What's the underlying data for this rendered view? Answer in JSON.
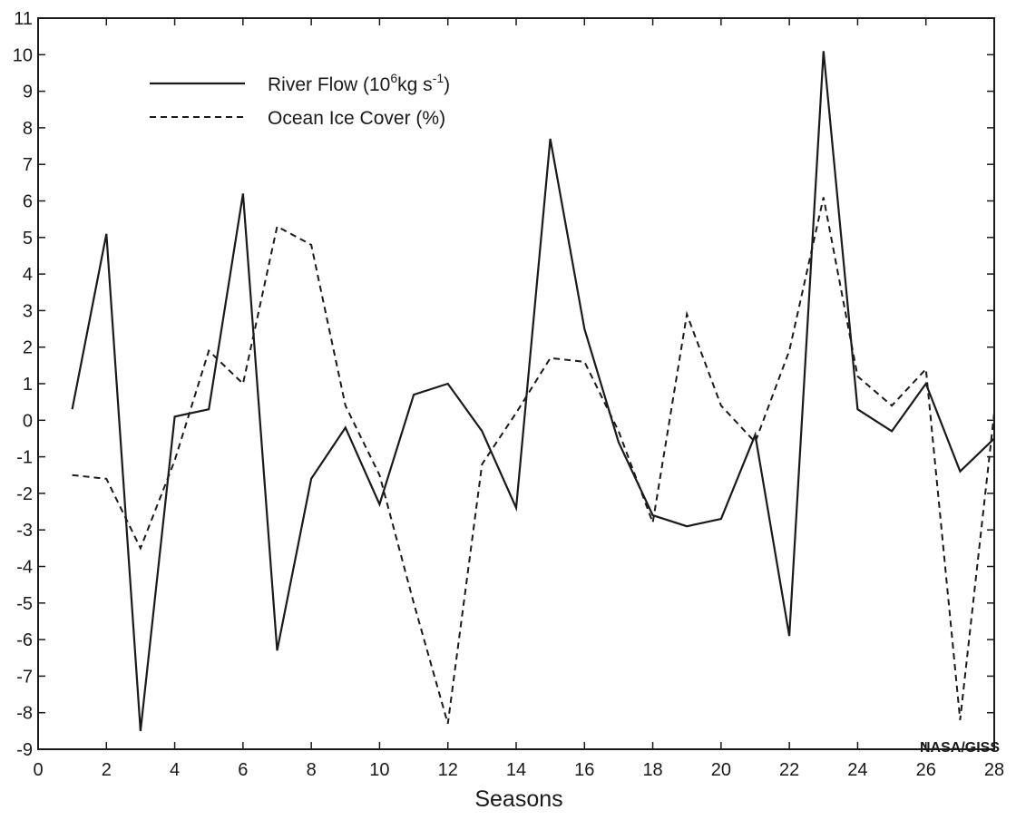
{
  "chart_data": {
    "type": "line",
    "xlabel": "Seasons",
    "ylabel": "",
    "xlim": [
      0,
      28
    ],
    "ylim": [
      -9,
      11
    ],
    "x_ticks": [
      0,
      2,
      4,
      6,
      8,
      10,
      12,
      14,
      16,
      18,
      20,
      22,
      24,
      26,
      28
    ],
    "y_ticks": [
      -9,
      -8,
      -7,
      -6,
      -5,
      -4,
      -3,
      -2,
      -1,
      0,
      1,
      2,
      3,
      4,
      5,
      6,
      7,
      8,
      9,
      10,
      11
    ],
    "grid": false,
    "legend_position": "top-left",
    "credit": "NASA/GISS",
    "x": [
      1,
      2,
      3,
      4,
      5,
      6,
      7,
      8,
      9,
      10,
      11,
      12,
      13,
      14,
      15,
      16,
      17,
      18,
      19,
      20,
      21,
      22,
      23,
      24,
      25,
      26,
      27,
      28
    ],
    "series": [
      {
        "name": "River Flow",
        "legend_text": "River Flow (10",
        "legend_sup1": "6",
        "legend_mid": "kg s",
        "legend_sup2": "-1",
        "legend_end": ")",
        "style": "solid",
        "values": [
          0.3,
          5.1,
          -8.5,
          0.1,
          0.3,
          6.2,
          -6.3,
          -1.6,
          -0.2,
          -2.3,
          0.7,
          1.0,
          -0.3,
          -2.4,
          7.7,
          2.5,
          -0.6,
          -2.6,
          -2.9,
          -2.7,
          -0.4,
          -5.9,
          10.1,
          0.3,
          -0.3,
          1.0,
          -1.4,
          -0.5
        ]
      },
      {
        "name": "Ocean Ice Cover (%)",
        "legend_text": "Ocean Ice Cover (%)",
        "style": "dashed",
        "values": [
          -1.5,
          -1.6,
          -3.5,
          -1.1,
          1.9,
          1.0,
          5.3,
          4.8,
          0.4,
          -1.5,
          -5.0,
          -8.3,
          -1.2,
          0.2,
          1.7,
          1.6,
          -0.3,
          -2.8,
          2.9,
          0.4,
          -0.6,
          1.9,
          6.1,
          1.2,
          0.4,
          1.4,
          -8.2,
          0.2
        ]
      }
    ]
  }
}
